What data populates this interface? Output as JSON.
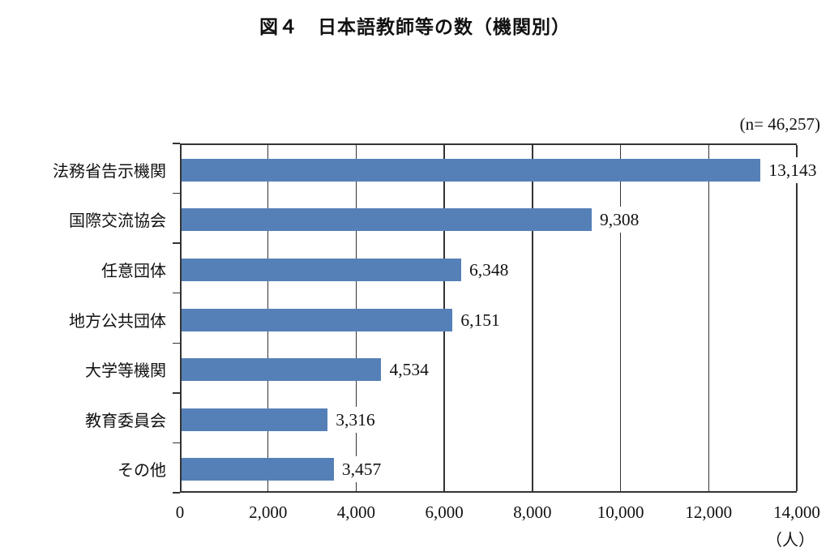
{
  "chart_data": {
    "type": "bar",
    "orientation": "horizontal",
    "title": "図４　日本語教師等の数（機関別）",
    "n_label": "(n= 46,257)",
    "unit_label": "（人）",
    "categories": [
      "法務省告示機関",
      "国際交流協会",
      "任意団体",
      "地方公共団体",
      "大学等機関",
      "教育委員会",
      "その他"
    ],
    "values": [
      13143,
      9308,
      6348,
      6151,
      4534,
      3316,
      3457
    ],
    "value_labels": [
      "13,143",
      "9,308",
      "6,348",
      "6,151",
      "4,534",
      "3,316",
      "3,457"
    ],
    "x_ticks": [
      0,
      2000,
      4000,
      6000,
      8000,
      10000,
      12000,
      14000
    ],
    "x_tick_labels": [
      "0",
      "2,000",
      "4,000",
      "6,000",
      "8,000",
      "10,000",
      "12,000",
      "14,000"
    ],
    "xlim": [
      0,
      14000
    ],
    "grid": true,
    "legend": "none",
    "bar_color": "#5580B7",
    "axis_color": "#333333",
    "label_background": "#FFFFFF"
  }
}
